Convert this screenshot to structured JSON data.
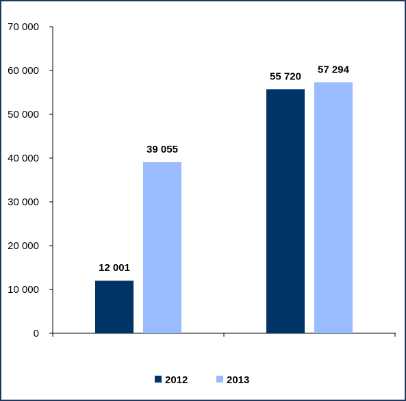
{
  "chart_data": {
    "type": "bar",
    "categories": [
      "",
      ""
    ],
    "series": [
      {
        "name": "2012",
        "values": [
          12001,
          55720
        ],
        "labels": [
          "12 001",
          "55 720"
        ],
        "color": "#003366"
      },
      {
        "name": "2013",
        "values": [
          39055,
          57294
        ],
        "labels": [
          "39 055",
          "57 294"
        ],
        "color": "#99bbff"
      }
    ],
    "title": "",
    "xlabel": "",
    "ylabel": "",
    "ylim": [
      0,
      70000
    ],
    "yticks": [
      0,
      10000,
      20000,
      30000,
      40000,
      50000,
      60000,
      70000
    ],
    "ytick_labels": [
      "0",
      "10 000",
      "20 000",
      "30 000",
      "40 000",
      "50 000",
      "60 000",
      "70 000"
    ],
    "grid": false,
    "legend": "bottom",
    "axis_color": "#000000",
    "frame_color": "#1f3864"
  }
}
